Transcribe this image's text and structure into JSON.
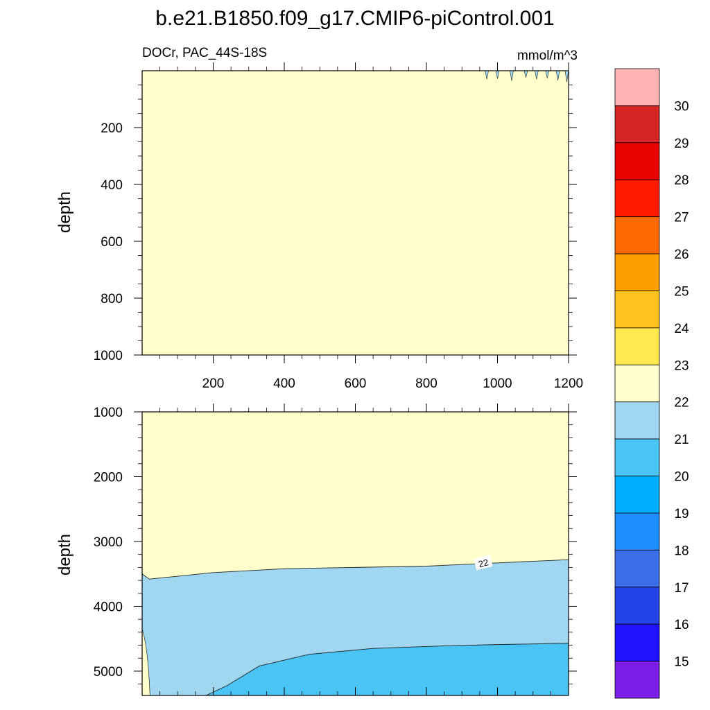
{
  "title": "b.e21.B1850.f09_g17.CMIP6-piControl.001",
  "chart_data": [
    {
      "panel": "upper",
      "type": "heatmap",
      "subtitle_left": "DOCr, PAC_44S-18S",
      "subtitle_right": "mmol/m^3",
      "ylabel": "depth",
      "xlim": [
        0,
        1200
      ],
      "ylim": [
        0,
        1000
      ],
      "y_inverted": true,
      "x_ticks": [
        200,
        400,
        600,
        800,
        1000,
        1200
      ],
      "x_tick_labels": [
        "200",
        "400",
        "600",
        "800",
        "1000",
        "1200"
      ],
      "y_ticks": [
        200,
        400,
        600,
        800,
        1000
      ],
      "y_tick_labels": [
        "200",
        "400",
        "600",
        "800",
        "1000"
      ],
      "regions": [
        {
          "range": [
            22,
            23
          ],
          "color": "#ffffcc",
          "extent": "entire panel"
        },
        {
          "range": [
            21,
            22
          ],
          "color": "#a0d6ef",
          "extent": "thin spikes near surface at x ≈ 970–1200, depth < 40"
        }
      ]
    },
    {
      "panel": "lower",
      "type": "heatmap",
      "ylabel": "depth",
      "xlim": [
        0,
        1200
      ],
      "ylim": [
        1000,
        5375
      ],
      "y_inverted": true,
      "y_ticks": [
        1000,
        2000,
        3000,
        4000,
        5000
      ],
      "y_tick_labels": [
        "1000",
        "2000",
        "3000",
        "4000",
        "5000"
      ],
      "contour_lines": [
        {
          "level": 22,
          "label": "22",
          "label_x": 960,
          "label_depth": 3330,
          "x": [
            0,
            20,
            200,
            400,
            600,
            800,
            1000,
            1200
          ],
          "depth": [
            3500,
            3580,
            3480,
            3420,
            3400,
            3380,
            3330,
            3280
          ]
        },
        {
          "level": 21,
          "x": [
            180,
            240,
            330,
            470,
            650,
            850,
            1000,
            1200
          ],
          "depth": [
            5375,
            5220,
            4920,
            4740,
            4650,
            4610,
            4590,
            4570
          ]
        }
      ],
      "regions": [
        {
          "range": [
            22,
            23
          ],
          "color": "#ffffcc",
          "extent": "above the 22 contour, plus a thin sliver at x ≈ 0–25, depth > 4350"
        },
        {
          "range": [
            21,
            22
          ],
          "color": "#a0d6ef",
          "extent": "between the 22 and 21 contours"
        },
        {
          "range": [
            20,
            21
          ],
          "color": "#4ac3f5",
          "extent": "below the 21 contour"
        }
      ]
    }
  ],
  "colorbar": {
    "labels": [
      "30",
      "29",
      "28",
      "27",
      "26",
      "25",
      "24",
      "23",
      "22",
      "21",
      "20",
      "19",
      "18",
      "17",
      "16",
      "15"
    ],
    "colors": [
      "#ffb4b4",
      "#d52524",
      "#e80000",
      "#ff1a00",
      "#ff6a00",
      "#ff9e00",
      "#ffc21e",
      "#ffe94f",
      "#ffffcc",
      "#a0d6ef",
      "#4ac3f5",
      "#00aeff",
      "#1e8fff",
      "#3a6ee6",
      "#2343e8",
      "#1e12ff",
      "#7b1ee8"
    ]
  }
}
